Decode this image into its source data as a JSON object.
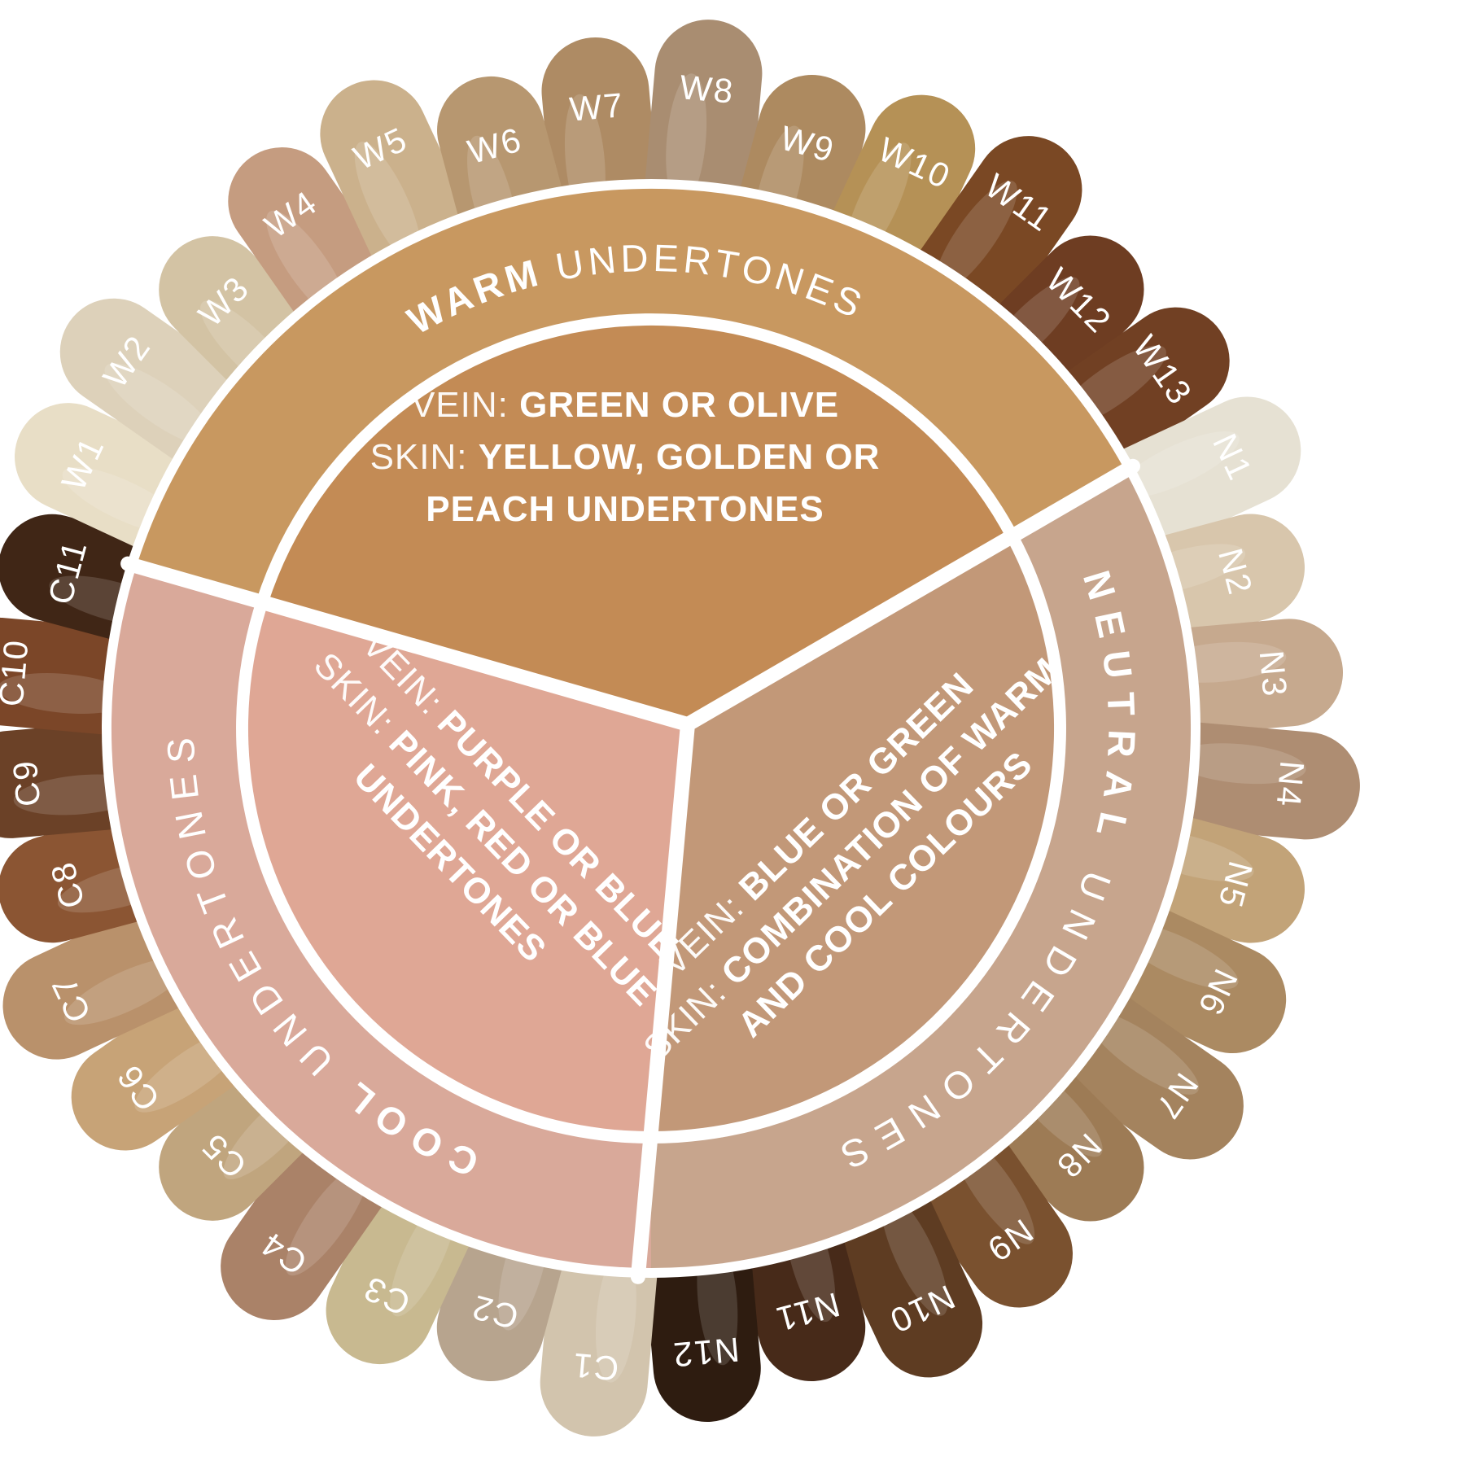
{
  "figure": {
    "type": "undertone-shade-wheel",
    "background": "#ffffff",
    "text_color": "#ffffff"
  },
  "sectors": [
    {
      "id": "warm",
      "ring_label_word1": "WARM",
      "ring_label_word2": " UNDERTONES",
      "ring_color": "#c89860",
      "inner_color": "#c38b55",
      "lines": [
        {
          "label": "VEIN: ",
          "value": "GREEN OR OLIVE"
        },
        {
          "label": "SKIN: ",
          "value": "YELLOW, GOLDEN OR"
        },
        {
          "label": "",
          "value": "PEACH UNDERTONES"
        }
      ]
    },
    {
      "id": "neutral",
      "ring_label_word1": "NEUTRAL",
      "ring_label_word2": " UNDERTONES",
      "ring_color": "#c7a58d",
      "inner_color": "#c29878",
      "lines": [
        {
          "label": "VEIN: ",
          "value": "BLUE OR GREEN"
        },
        {
          "label": "SKIN: ",
          "value": "COMBINATION OF WARM"
        },
        {
          "label": "",
          "value": "AND COOL COLOURS"
        }
      ]
    },
    {
      "id": "cool",
      "ring_label_word1": "COOL",
      "ring_label_word2": " UNDERTONES",
      "ring_color": "#d9a99a",
      "inner_color": "#dfa795",
      "lines": [
        {
          "label": "VEIN: ",
          "value": "PURPLE OR BLUE"
        },
        {
          "label": "SKIN: ",
          "value": "PINK, RED OR BLUE"
        },
        {
          "label": "",
          "value": "UNDERTONES"
        }
      ]
    }
  ],
  "shades_clockwise_from_top": [
    {
      "id": "W7",
      "series": "warm",
      "color": "#ae8b64"
    },
    {
      "id": "W8",
      "series": "warm",
      "color": "#a98d71"
    },
    {
      "id": "W9",
      "series": "warm",
      "color": "#ad8a60"
    },
    {
      "id": "W10",
      "series": "warm",
      "color": "#b59156"
    },
    {
      "id": "W11",
      "series": "warm",
      "color": "#7a4824"
    },
    {
      "id": "W12",
      "series": "warm",
      "color": "#6e3d22"
    },
    {
      "id": "W13",
      "series": "warm",
      "color": "#714023"
    },
    {
      "id": "N1",
      "series": "neutral",
      "color": "#e6e1d3"
    },
    {
      "id": "N2",
      "series": "neutral",
      "color": "#d8c6ac"
    },
    {
      "id": "N3",
      "series": "neutral",
      "color": "#c6a98e"
    },
    {
      "id": "N4",
      "series": "neutral",
      "color": "#ae8d72"
    },
    {
      "id": "N5",
      "series": "neutral",
      "color": "#c2a378"
    },
    {
      "id": "N6",
      "series": "neutral",
      "color": "#ab8a62"
    },
    {
      "id": "N7",
      "series": "neutral",
      "color": "#a4835e"
    },
    {
      "id": "N8",
      "series": "neutral",
      "color": "#9d7b55"
    },
    {
      "id": "N9",
      "series": "neutral",
      "color": "#7a512f"
    },
    {
      "id": "N10",
      "series": "neutral",
      "color": "#5e3c22"
    },
    {
      "id": "N11",
      "series": "neutral",
      "color": "#472a19"
    },
    {
      "id": "N12",
      "series": "neutral",
      "color": "#2e1c10"
    },
    {
      "id": "C1",
      "series": "cool",
      "color": "#d2c4ad"
    },
    {
      "id": "C2",
      "series": "cool",
      "color": "#b7a48e"
    },
    {
      "id": "C3",
      "series": "cool",
      "color": "#c8b990"
    },
    {
      "id": "C4",
      "series": "cool",
      "color": "#aa8268"
    },
    {
      "id": "C5",
      "series": "cool",
      "color": "#c0a57e"
    },
    {
      "id": "C6",
      "series": "cool",
      "color": "#c7a377"
    },
    {
      "id": "C7",
      "series": "cool",
      "color": "#b9916b"
    },
    {
      "id": "C8",
      "series": "cool",
      "color": "#8b5533"
    },
    {
      "id": "C9",
      "series": "cool",
      "color": "#6b4127"
    },
    {
      "id": "C10",
      "series": "cool",
      "color": "#7b4628"
    },
    {
      "id": "C11",
      "series": "cool",
      "color": "#402616"
    },
    {
      "id": "W1",
      "series": "warm",
      "color": "#e8dec6"
    },
    {
      "id": "W2",
      "series": "warm",
      "color": "#ddd1ba"
    },
    {
      "id": "W3",
      "series": "warm",
      "color": "#d3c3a4"
    },
    {
      "id": "W4",
      "series": "warm",
      "color": "#c59c80"
    },
    {
      "id": "W5",
      "series": "warm",
      "color": "#cbb18c"
    },
    {
      "id": "W6",
      "series": "warm",
      "color": "#b79770"
    }
  ]
}
